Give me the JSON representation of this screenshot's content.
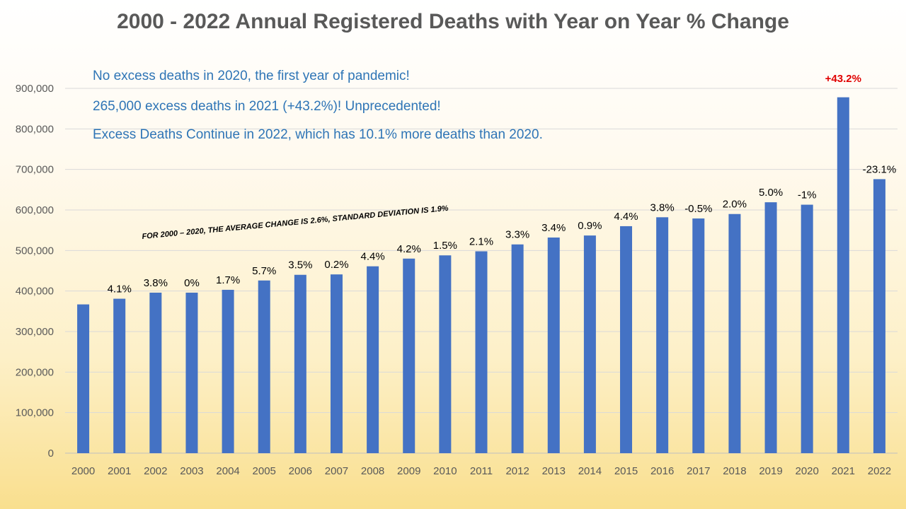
{
  "chart_data": {
    "type": "bar",
    "title": "2000 - 2022 Annual Registered Deaths with Year on Year % Change",
    "categories": [
      "2000",
      "2001",
      "2002",
      "2003",
      "2004",
      "2005",
      "2006",
      "2007",
      "2008",
      "2009",
      "2010",
      "2011",
      "2012",
      "2013",
      "2014",
      "2015",
      "2016",
      "2017",
      "2018",
      "2019",
      "2020",
      "2021",
      "2022"
    ],
    "values": [
      367000,
      381000,
      396000,
      396000,
      403000,
      426000,
      440000,
      441000,
      461000,
      480000,
      488000,
      498000,
      515000,
      532000,
      537000,
      560000,
      582000,
      579000,
      590000,
      619000,
      613000,
      878000,
      676000
    ],
    "pct_labels": [
      "",
      "4.1%",
      "3.8%",
      "0%",
      "1.7%",
      "5.7%",
      "3.5%",
      "0.2%",
      "4.4%",
      "4.2%",
      "1.5%",
      "2.1%",
      "3.3%",
      "3.4%",
      "0.9%",
      "4.4%",
      "3.8%",
      "-0.5%",
      "2.0%",
      "5.0%",
      "-1%",
      "+43.2%",
      "-23.1%"
    ],
    "highlight_index": 21,
    "y_ticks": [
      "0",
      "100,000",
      "200,000",
      "300,000",
      "400,000",
      "500,000",
      "600,000",
      "700,000",
      "800,000",
      "900,000"
    ],
    "ylim": [
      0,
      900000
    ],
    "xlabel": "",
    "ylabel": "",
    "grid": true,
    "legend": "none",
    "bar_color": "#4472c4",
    "highlight_color": "#e00000",
    "annotations": {
      "note_1": "No excess deaths in 2020, the first year of pandemic!",
      "note_2": "265,000 excess deaths in 2021 (+43.2%)! Unprecedented!",
      "note_3": "Excess Deaths Continue in 2022, which has 10.1% more deaths than 2020.",
      "stats_note": "FOR 2000 – 2020,  THE AVERAGE CHANGE IS 2.6%, STANDARD DEVIATION IS 1.9%"
    }
  }
}
